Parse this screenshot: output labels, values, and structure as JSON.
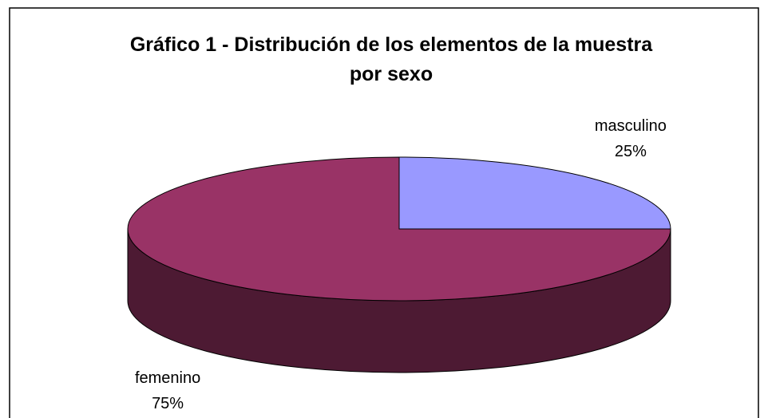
{
  "chart_data": {
    "type": "pie",
    "title": "Gráfico 1 - Distribución de los elementos de la muestra por sexo",
    "categories": [
      "masculino",
      "femenino"
    ],
    "values": [
      25,
      75
    ],
    "value_labels": [
      "25%",
      "75%"
    ],
    "colors": [
      "#9999ff",
      "#993366"
    ],
    "three_d": true
  }
}
